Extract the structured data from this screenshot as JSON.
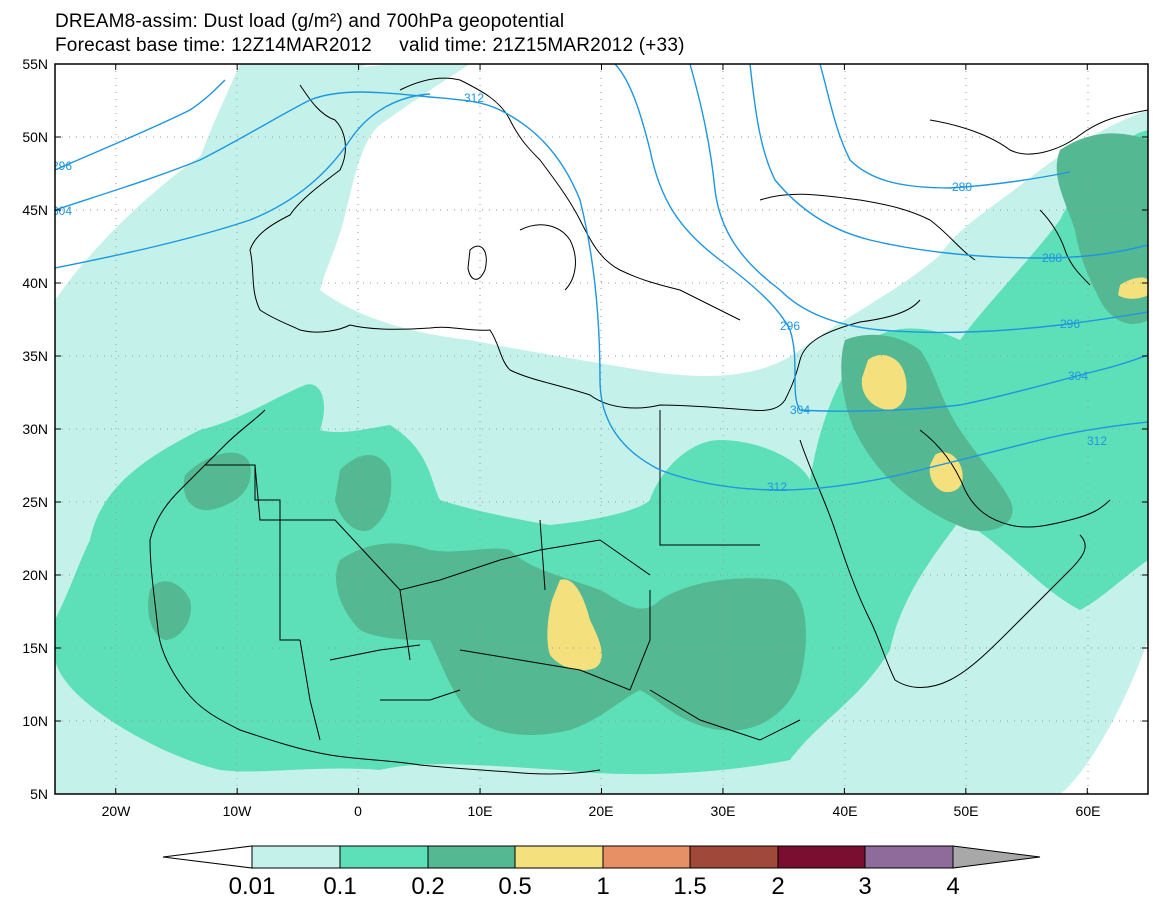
{
  "header": {
    "title_line1": "DREAM8-assim: Dust load (g/m²) and 700hPa geopotential",
    "title_line2": "Forecast base time: 12Z14MAR2012     valid time: 21Z15MAR2012 (+33)"
  },
  "map": {
    "lon_range": [
      -25,
      65
    ],
    "lat_range": [
      5,
      55
    ],
    "lat_ticks": [
      {
        "value": 55,
        "label": "55N"
      },
      {
        "value": 50,
        "label": "50N"
      },
      {
        "value": 45,
        "label": "45N"
      },
      {
        "value": 40,
        "label": "40N"
      },
      {
        "value": 35,
        "label": "35N"
      },
      {
        "value": 30,
        "label": "30N"
      },
      {
        "value": 25,
        "label": "25N"
      },
      {
        "value": 20,
        "label": "20N"
      },
      {
        "value": 15,
        "label": "15N"
      },
      {
        "value": 10,
        "label": "10N"
      },
      {
        "value": 5,
        "label": "5N"
      }
    ],
    "lon_ticks": [
      {
        "value": -20,
        "label": "20W"
      },
      {
        "value": -10,
        "label": "10W"
      },
      {
        "value": 0,
        "label": "0"
      },
      {
        "value": 10,
        "label": "10E"
      },
      {
        "value": 20,
        "label": "20E"
      },
      {
        "value": 30,
        "label": "30E"
      },
      {
        "value": 40,
        "label": "40E"
      },
      {
        "value": 50,
        "label": "50E"
      },
      {
        "value": 60,
        "label": "60E"
      }
    ],
    "contour_labels": [
      "296",
      "304",
      "312",
      "280",
      "288",
      "296",
      "304",
      "312",
      "296",
      "304",
      "312"
    ],
    "contour_color": "#1e96e0",
    "gridline_style": "dotted"
  },
  "colorbar": {
    "labels": [
      "0.01",
      "0.1",
      "0.2",
      "0.5",
      "1",
      "1.5",
      "2",
      "3",
      "4"
    ],
    "colors": [
      "#ffffff",
      "#c4f2ea",
      "#5ddfb7",
      "#54b893",
      "#f4e17d",
      "#e89065",
      "#a0483a",
      "#7a0e30",
      "#8f6b9c",
      "#a8a8a8"
    ]
  }
}
